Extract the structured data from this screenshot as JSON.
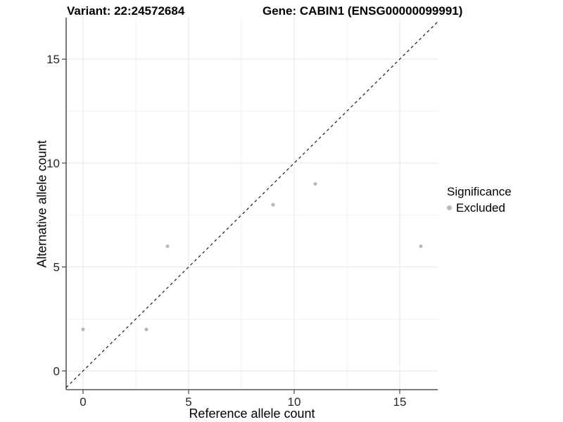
{
  "chart_data": {
    "type": "scatter",
    "title_left": "Variant: 22:24572684",
    "title_right": "Gene: CABIN1 (ENSG00000099991)",
    "xlabel": "Reference allele count",
    "ylabel": "Alternative allele count",
    "x_ticks": [
      0,
      5,
      10,
      15
    ],
    "y_ticks": [
      0,
      5,
      10,
      15
    ],
    "xlim": [
      -0.8,
      16.8
    ],
    "ylim": [
      -0.9,
      17.0
    ],
    "grid": "major+minor",
    "identity_line": {
      "style": "dashed",
      "equation": "y = x",
      "color": "#1a1a1a"
    },
    "series": [
      {
        "name": "Excluded",
        "color": "#b9b9b9",
        "points": [
          [
            0,
            2
          ],
          [
            3,
            2
          ],
          [
            4,
            6
          ],
          [
            9,
            8
          ],
          [
            11,
            9
          ],
          [
            16,
            6
          ]
        ]
      }
    ],
    "legend": {
      "position": "right",
      "title": "Significance",
      "items": [
        {
          "label": "Excluded",
          "color": "#b9b9b9"
        }
      ]
    },
    "colors": {
      "background": "#ffffff",
      "axis_line": "#333333",
      "tick_text": "#262626",
      "grid_major": "#e7e7e7",
      "grid_minor": "#f2f2f2",
      "point": "#b9b9b9"
    }
  }
}
